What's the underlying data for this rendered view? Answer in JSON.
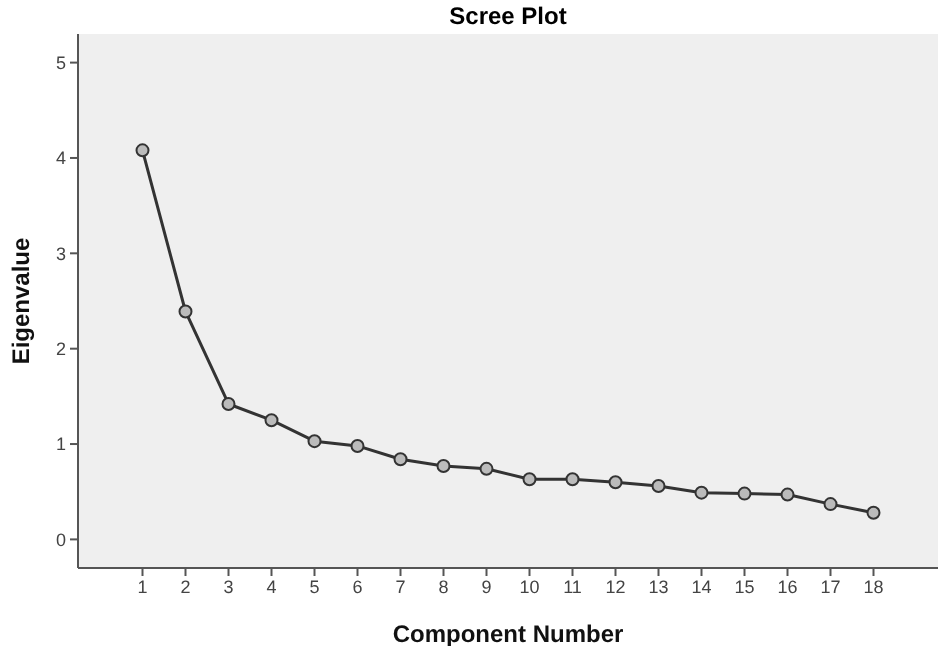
{
  "chart_data": {
    "type": "line",
    "title": "Scree Plot",
    "xlabel": "Component Number",
    "ylabel": "Eigenvalue",
    "x": [
      1,
      2,
      3,
      4,
      5,
      6,
      7,
      8,
      9,
      10,
      11,
      12,
      13,
      14,
      15,
      16,
      17,
      18
    ],
    "series": [
      {
        "color": "#333333",
        "values": [
          4.08,
          2.39,
          1.42,
          1.25,
          1.03,
          0.98,
          0.84,
          0.77,
          0.74,
          0.63,
          0.63,
          0.6,
          0.56,
          0.49,
          0.48,
          0.47,
          0.37,
          0.28
        ]
      }
    ],
    "xlim": [
      -0.5,
      19.5
    ],
    "xticks": [
      1,
      2,
      3,
      4,
      5,
      6,
      7,
      8,
      9,
      10,
      11,
      12,
      13,
      14,
      15,
      16,
      17,
      18
    ],
    "ylim": [
      -0.3,
      5.3
    ],
    "yticks": [
      0,
      1,
      2,
      3,
      4,
      5
    ],
    "marker": "circle",
    "line_style": "solid"
  }
}
